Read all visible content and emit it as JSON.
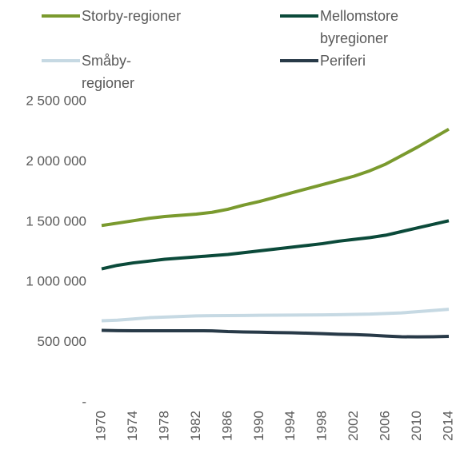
{
  "chart_data": {
    "type": "line",
    "x": [
      1970,
      1972,
      1974,
      1976,
      1978,
      1980,
      1982,
      1984,
      1986,
      1988,
      1990,
      1992,
      1994,
      1996,
      1998,
      2000,
      2002,
      2004,
      2006,
      2008,
      2010,
      2012,
      2014
    ],
    "series": [
      {
        "name": "Storby-regioner",
        "color": "#7a9a2e",
        "values": [
          1470000,
          1490000,
          1510000,
          1530000,
          1545000,
          1555000,
          1565000,
          1580000,
          1605000,
          1640000,
          1670000,
          1705000,
          1740000,
          1775000,
          1810000,
          1845000,
          1880000,
          1925000,
          1980000,
          2050000,
          2120000,
          2195000,
          2270000
        ]
      },
      {
        "name": "Mellomstore byregioner",
        "color": "#0b4a3a",
        "values": [
          1110000,
          1140000,
          1160000,
          1175000,
          1190000,
          1200000,
          1210000,
          1220000,
          1230000,
          1245000,
          1260000,
          1275000,
          1290000,
          1305000,
          1320000,
          1340000,
          1355000,
          1370000,
          1390000,
          1420000,
          1450000,
          1480000,
          1510000
        ]
      },
      {
        "name": "Småby-regioner",
        "color": "#c6d9e3",
        "values": [
          680000,
          685000,
          695000,
          705000,
          710000,
          715000,
          720000,
          722000,
          723000,
          724000,
          725000,
          726000,
          727000,
          728000,
          729000,
          730000,
          733000,
          735000,
          740000,
          745000,
          755000,
          765000,
          775000
        ]
      },
      {
        "name": "Periferi",
        "color": "#283a48",
        "values": [
          600000,
          598000,
          597000,
          597000,
          597000,
          597000,
          597000,
          596000,
          590000,
          587000,
          585000,
          582000,
          580000,
          577000,
          573000,
          568000,
          565000,
          560000,
          553000,
          547000,
          546000,
          547000,
          550000
        ]
      }
    ],
    "xlim": [
      1970,
      2014
    ],
    "xticks": [
      1970,
      1974,
      1978,
      1982,
      1986,
      1990,
      1994,
      1998,
      2002,
      2006,
      2010,
      2014
    ],
    "ylim": [
      0,
      2500000
    ],
    "yticks": [
      {
        "value": 0,
        "label": "-"
      },
      {
        "value": 500000,
        "label": "500 000"
      },
      {
        "value": 1000000,
        "label": "1 000 000"
      },
      {
        "value": 1500000,
        "label": "1 500 000"
      },
      {
        "value": 2000000,
        "label": "2 000 000"
      },
      {
        "value": 2500000,
        "label": "2 500 000"
      }
    ],
    "grid": false
  }
}
